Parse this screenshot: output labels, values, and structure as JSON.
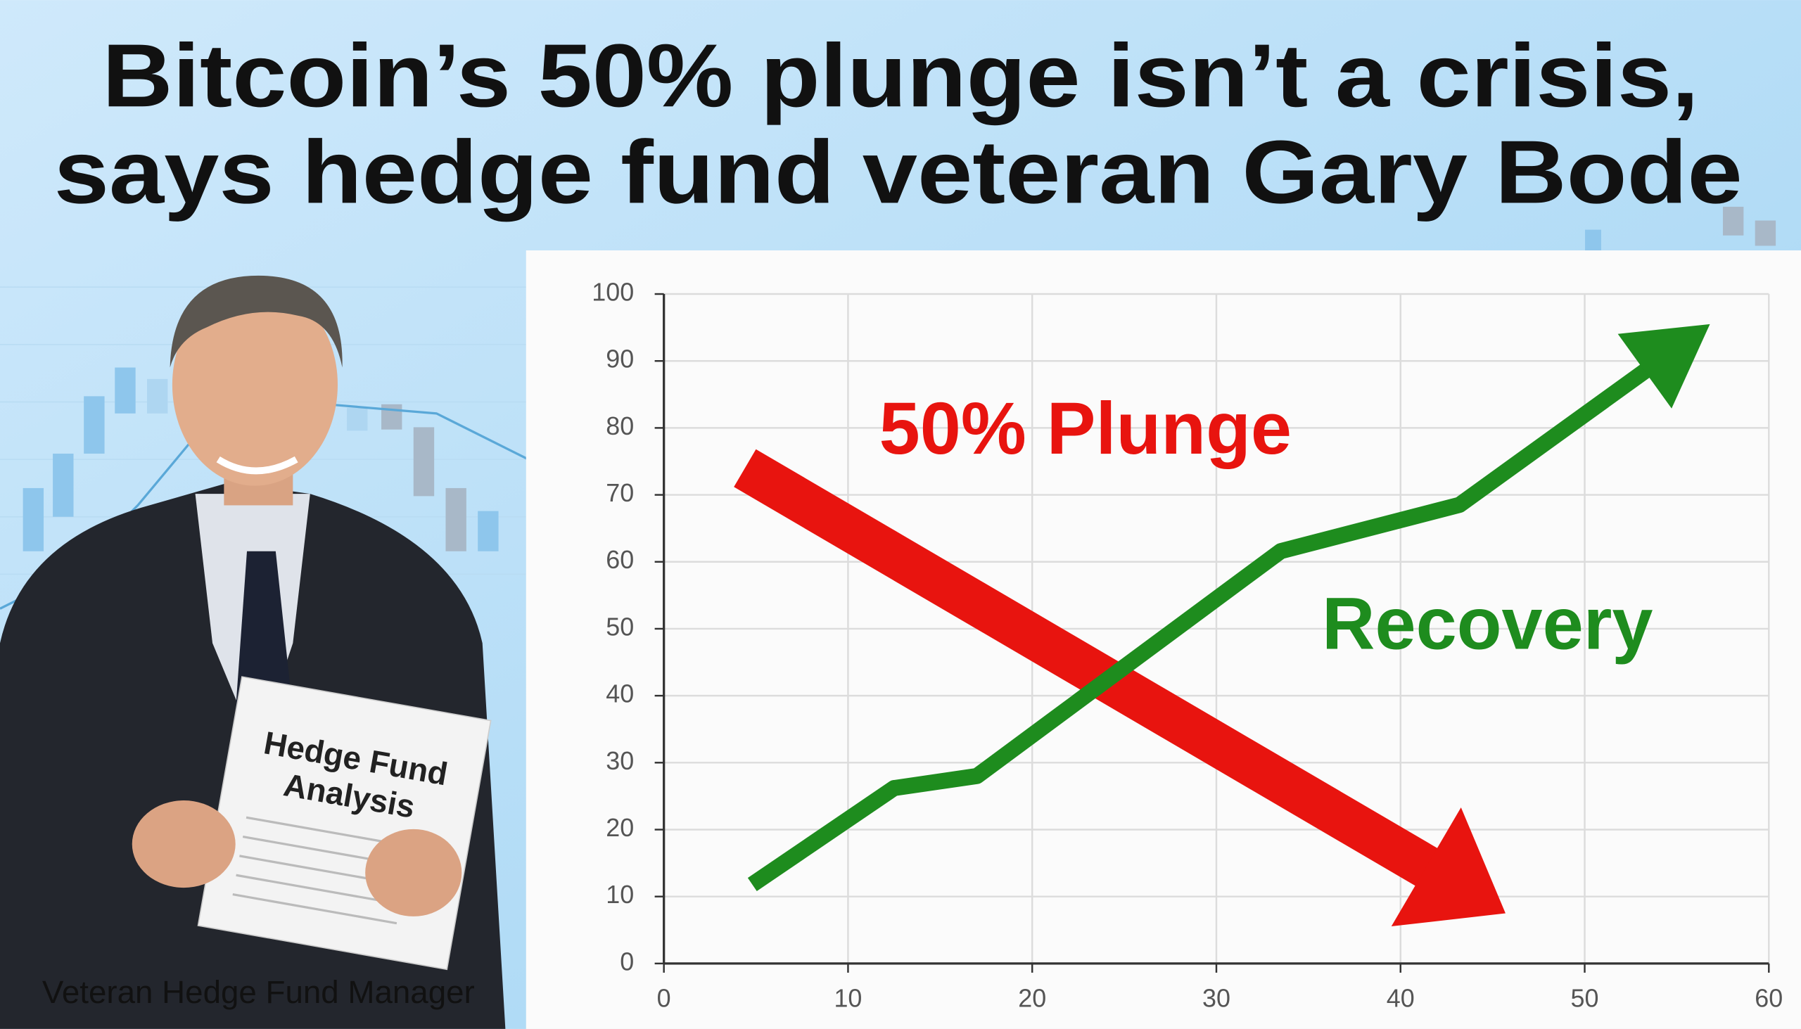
{
  "header": {
    "title_lines": [
      "Bitcoin’s 50% plunge isn’t a crisis,",
      "says hedge fund veteran Gary Bode"
    ]
  },
  "photo": {
    "paper_lines": [
      "Hedge Fund",
      "Analysis"
    ],
    "caption": "Veteran Hedge Fund Manager"
  },
  "chart_data": {
    "type": "line",
    "xlim": [
      0,
      60
    ],
    "xticks": [
      0,
      10,
      20,
      30,
      40,
      50,
      60
    ],
    "ylim": [
      0,
      100
    ],
    "yticks": [
      0,
      10,
      20,
      30,
      40,
      50,
      60,
      70,
      80,
      90,
      100
    ],
    "grid": true,
    "series": [
      {
        "name": "50% Plunge",
        "color": "#e8140f",
        "x": [
          4.4,
          45.7
        ],
        "values": [
          74,
          7.5
        ]
      },
      {
        "name": "Recovery",
        "color": "#1e8c1e",
        "x": [
          4.8,
          12.5,
          17,
          33.5,
          43.2,
          56.8
        ],
        "values": [
          11.8,
          26.2,
          28,
          61.6,
          68.5,
          95.5
        ]
      }
    ]
  }
}
